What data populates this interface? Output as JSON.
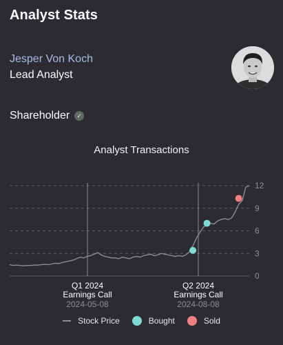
{
  "header": {
    "title": "Analyst Stats"
  },
  "analyst": {
    "name": "Jesper Von Koch",
    "role": "Lead Analyst",
    "status": "Shareholder"
  },
  "colors": {
    "price_line": "#8c8c92",
    "bought": "#7fdad6",
    "sold": "#f07f82",
    "name_link": "#a9bde6"
  },
  "chart_data": {
    "type": "line",
    "title": "Analyst Transactions",
    "ylim": [
      0,
      12
    ],
    "y_ticks": [
      "0",
      "3",
      "6",
      "9",
      "12"
    ],
    "grid": true,
    "price_series": {
      "name": "Stock Price",
      "values": [
        1.5,
        1.4,
        1.45,
        1.4,
        1.35,
        1.4,
        1.4,
        1.45,
        1.45,
        1.5,
        1.55,
        1.5,
        1.6,
        1.7,
        1.65,
        1.8,
        1.9,
        2.0,
        2.1,
        2.3,
        2.5,
        2.4,
        2.6,
        2.7,
        2.9,
        3.1,
        2.8,
        2.6,
        2.5,
        2.4,
        2.4,
        2.3,
        2.5,
        2.4,
        2.3,
        2.5,
        2.6,
        2.5,
        2.7,
        2.8,
        2.9,
        2.7,
        2.8,
        3.0,
        2.9,
        2.8,
        2.7,
        2.6,
        2.7,
        2.6,
        2.8,
        3.2,
        4.0,
        5.0,
        5.8,
        6.5,
        6.8,
        7.0,
        6.9,
        7.3,
        7.5,
        7.6,
        7.5,
        7.7,
        8.5,
        9.5,
        10.0,
        11.8,
        12.0
      ]
    },
    "events": [
      {
        "label": "Q1 2024",
        "sub": "Earnings Call",
        "date": "2024-05-08"
      },
      {
        "label": "Q2 2024",
        "sub": "Earnings Call",
        "date": "2024-08-08"
      }
    ],
    "transactions": [
      {
        "type": "Bought",
        "index": 52,
        "value": 3.4
      },
      {
        "type": "Bought",
        "index": 56,
        "value": 7.0
      },
      {
        "type": "Sold",
        "index": 65,
        "value": 10.3
      }
    ],
    "legend": [
      {
        "type": "line",
        "label": "Stock Price"
      },
      {
        "type": "dot",
        "label": "Bought"
      },
      {
        "type": "dot",
        "label": "Sold"
      }
    ]
  }
}
